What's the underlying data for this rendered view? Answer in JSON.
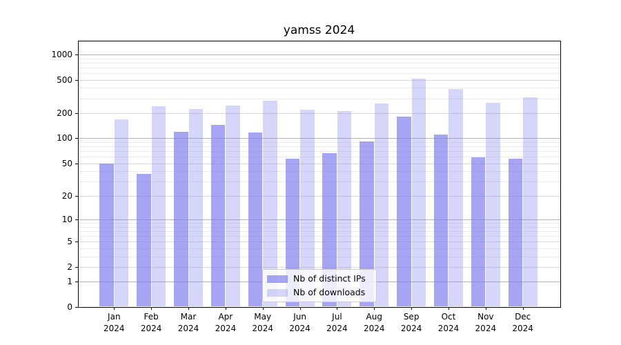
{
  "title": "yamss 2024",
  "legend": {
    "items": [
      {
        "label": "Nb of distinct IPs",
        "series": "ips"
      },
      {
        "label": "Nb of downloads",
        "series": "downloads"
      }
    ]
  },
  "colors": {
    "bar_base": "#7f7fee",
    "ips_fill": "rgba(127,127,238,0.70)",
    "downloads_fill": "rgba(127,127,238,0.32)",
    "grid_major": "#b3b3b3",
    "grid_mid": "#dadada",
    "grid_minor": "#ececec",
    "spine": "#000000"
  },
  "y_axis": {
    "ticks": [
      0,
      1,
      2,
      5,
      10,
      20,
      50,
      100,
      200,
      500,
      1000
    ],
    "gridlines_major": [
      1,
      10,
      100,
      1000
    ],
    "gridlines_mid": [
      2,
      5,
      20,
      50,
      200,
      500
    ],
    "gridlines_minor": [
      3,
      4,
      6,
      7,
      8,
      9,
      30,
      40,
      60,
      70,
      80,
      90,
      300,
      400,
      600,
      700,
      800,
      900
    ]
  },
  "chart_data": {
    "type": "bar",
    "title": "yamss 2024",
    "categories": [
      "Jan 2024",
      "Feb 2024",
      "Mar 2024",
      "Apr 2024",
      "May 2024",
      "Jun 2024",
      "Jul 2024",
      "Aug 2024",
      "Sep 2024",
      "Oct 2024",
      "Nov 2024",
      "Dec 2024"
    ],
    "series": [
      {
        "name": "Nb of distinct IPs",
        "values": [
          50,
          37,
          120,
          145,
          118,
          57,
          66,
          92,
          181,
          112,
          59,
          57
        ]
      },
      {
        "name": "Nb of downloads",
        "values": [
          168,
          243,
          225,
          245,
          280,
          219,
          212,
          261,
          513,
          386,
          264,
          311
        ]
      }
    ],
    "xlabel": "",
    "ylabel": "",
    "yscale": "log1p",
    "ylim": [
      0,
      1440
    ],
    "y_ticks": [
      0,
      1,
      2,
      5,
      10,
      20,
      50,
      100,
      200,
      500,
      1000
    ],
    "grid": true,
    "legend_position": "lower center"
  }
}
